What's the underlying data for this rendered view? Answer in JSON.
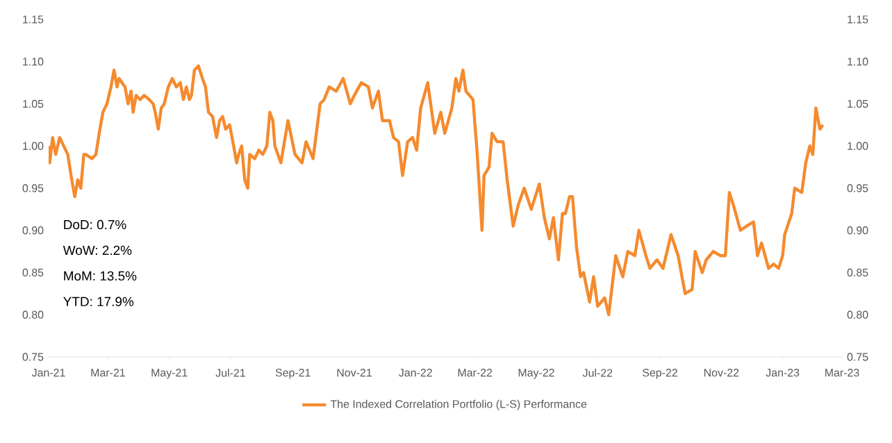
{
  "chart_data": {
    "type": "line",
    "x": [
      "2021-01-01",
      "2021-01-02",
      "2021-01-05",
      "2021-01-08",
      "2021-01-12",
      "2021-01-16",
      "2021-01-20",
      "2021-01-24",
      "2021-01-27",
      "2021-01-30",
      "2021-02-02",
      "2021-02-05",
      "2021-02-07",
      "2021-02-13",
      "2021-02-17",
      "2021-02-21",
      "2021-02-24",
      "2021-02-28",
      "2021-03-04",
      "2021-03-07",
      "2021-03-10",
      "2021-03-12",
      "2021-03-15",
      "2021-03-18",
      "2021-03-21",
      "2021-03-24",
      "2021-03-26",
      "2021-03-29",
      "2021-04-02",
      "2021-04-06",
      "2021-04-11",
      "2021-04-15",
      "2021-04-17",
      "2021-04-20",
      "2021-04-23",
      "2021-04-26",
      "2021-04-30",
      "2021-05-04",
      "2021-05-08",
      "2021-05-12",
      "2021-05-15",
      "2021-05-18",
      "2021-05-21",
      "2021-05-23",
      "2021-05-26",
      "2021-05-30",
      "2021-06-03",
      "2021-06-06",
      "2021-06-09",
      "2021-06-13",
      "2021-06-17",
      "2021-06-20",
      "2021-06-23",
      "2021-06-26",
      "2021-06-30",
      "2021-07-04",
      "2021-07-07",
      "2021-07-09",
      "2021-07-12",
      "2021-07-15",
      "2021-07-18",
      "2021-07-20",
      "2021-07-25",
      "2021-07-29",
      "2021-08-02",
      "2021-08-06",
      "2021-08-09",
      "2021-08-12",
      "2021-08-14",
      "2021-08-20",
      "2021-08-27",
      "2021-09-03",
      "2021-09-10",
      "2021-09-14",
      "2021-09-21",
      "2021-09-28",
      "2021-10-02",
      "2021-10-07",
      "2021-10-14",
      "2021-10-21",
      "2021-10-28",
      "2021-11-01",
      "2021-11-08",
      "2021-11-15",
      "2021-11-19",
      "2021-11-25",
      "2021-11-29",
      "2021-12-06",
      "2021-12-10",
      "2021-12-15",
      "2021-12-19",
      "2021-12-24",
      "2021-12-29",
      "2022-01-02",
      "2022-01-06",
      "2022-01-13",
      "2022-01-20",
      "2022-01-26",
      "2022-01-30",
      "2022-02-06",
      "2022-02-10",
      "2022-02-13",
      "2022-02-17",
      "2022-02-20",
      "2022-02-27",
      "2022-03-03",
      "2022-03-08",
      "2022-03-10",
      "2022-03-15",
      "2022-03-18",
      "2022-03-23",
      "2022-03-29",
      "2022-04-02",
      "2022-04-08",
      "2022-04-13",
      "2022-04-19",
      "2022-04-26",
      "2022-04-30",
      "2022-05-04",
      "2022-05-09",
      "2022-05-14",
      "2022-05-18",
      "2022-05-23",
      "2022-05-27",
      "2022-05-30",
      "2022-06-03",
      "2022-06-06",
      "2022-06-10",
      "2022-06-14",
      "2022-06-17",
      "2022-06-23",
      "2022-06-27",
      "2022-07-01",
      "2022-07-08",
      "2022-07-12",
      "2022-07-19",
      "2022-07-26",
      "2022-07-31",
      "2022-08-07",
      "2022-08-11",
      "2022-08-18",
      "2022-08-22",
      "2022-08-29",
      "2022-09-04",
      "2022-09-12",
      "2022-09-19",
      "2022-09-26",
      "2022-10-03",
      "2022-10-06",
      "2022-10-13",
      "2022-10-17",
      "2022-10-24",
      "2022-10-31",
      "2022-11-05",
      "2022-11-09",
      "2022-11-13",
      "2022-11-20",
      "2022-11-26",
      "2022-12-03",
      "2022-12-07",
      "2022-12-11",
      "2022-12-18",
      "2022-12-23",
      "2022-12-28",
      "2023-01-01",
      "2023-01-03",
      "2023-01-10",
      "2023-01-13",
      "2023-01-20",
      "2023-01-24",
      "2023-01-28",
      "2023-01-31",
      "2023-02-03",
      "2023-02-07",
      "2023-02-10"
    ],
    "series": [
      {
        "name": "The Indexed Correlation Portfolio (L-S) Performance",
        "color": "#f58a2e",
        "values": [
          1.0,
          0.98,
          1.01,
          0.99,
          1.01,
          1.0,
          0.99,
          0.96,
          0.94,
          0.96,
          0.95,
          0.99,
          0.99,
          0.985,
          0.99,
          1.02,
          1.04,
          1.05,
          1.07,
          1.09,
          1.07,
          1.08,
          1.075,
          1.07,
          1.05,
          1.065,
          1.04,
          1.06,
          1.055,
          1.06,
          1.055,
          1.05,
          1.04,
          1.02,
          1.045,
          1.05,
          1.07,
          1.08,
          1.07,
          1.075,
          1.055,
          1.07,
          1.055,
          1.06,
          1.09,
          1.095,
          1.08,
          1.07,
          1.04,
          1.035,
          1.01,
          1.03,
          1.035,
          1.02,
          1.025,
          1.0,
          0.98,
          0.99,
          1.0,
          0.96,
          0.95,
          0.99,
          0.985,
          0.995,
          0.99,
          1.0,
          1.04,
          1.03,
          1.0,
          0.98,
          1.03,
          0.99,
          0.98,
          1.005,
          0.985,
          1.05,
          1.055,
          1.07,
          1.065,
          1.08,
          1.05,
          1.06,
          1.075,
          1.07,
          1.045,
          1.065,
          1.03,
          1.03,
          1.01,
          1.005,
          0.965,
          1.005,
          1.01,
          0.995,
          1.045,
          1.075,
          1.015,
          1.04,
          1.015,
          1.045,
          1.08,
          1.065,
          1.09,
          1.065,
          1.055,
          0.995,
          0.9,
          0.965,
          0.975,
          1.015,
          1.005,
          1.005,
          0.96,
          0.905,
          0.93,
          0.95,
          0.925,
          0.94,
          0.955,
          0.915,
          0.89,
          0.915,
          0.865,
          0.92,
          0.92,
          0.94,
          0.94,
          0.88,
          0.845,
          0.85,
          0.815,
          0.845,
          0.81,
          0.82,
          0.8,
          0.87,
          0.845,
          0.875,
          0.87,
          0.9,
          0.87,
          0.855,
          0.865,
          0.855,
          0.895,
          0.87,
          0.825,
          0.83,
          0.875,
          0.85,
          0.865,
          0.875,
          0.87,
          0.87,
          0.945,
          0.93,
          0.9,
          0.905,
          0.91,
          0.87,
          0.885,
          0.855,
          0.86,
          0.855,
          0.87,
          0.895,
          0.92,
          0.95,
          0.945,
          0.98,
          1.0,
          0.99,
          1.045,
          1.02,
          1.025
        ]
      }
    ],
    "xlim": [
      "2021-01-01",
      "2023-03-01"
    ],
    "xticks": [
      {
        "value": "2021-01-01",
        "label": "Jan-21"
      },
      {
        "value": "2021-03-01",
        "label": "Mar-21"
      },
      {
        "value": "2021-05-01",
        "label": "May-21"
      },
      {
        "value": "2021-07-01",
        "label": "Jul-21"
      },
      {
        "value": "2021-09-01",
        "label": "Sep-21"
      },
      {
        "value": "2021-11-01",
        "label": "Nov-21"
      },
      {
        "value": "2022-01-01",
        "label": "Jan-22"
      },
      {
        "value": "2022-03-01",
        "label": "Mar-22"
      },
      {
        "value": "2022-05-01",
        "label": "May-22"
      },
      {
        "value": "2022-07-01",
        "label": "Jul-22"
      },
      {
        "value": "2022-09-01",
        "label": "Sep-22"
      },
      {
        "value": "2022-11-01",
        "label": "Nov-22"
      },
      {
        "value": "2023-01-01",
        "label": "Jan-23"
      },
      {
        "value": "2023-03-01",
        "label": "Mar-23"
      }
    ],
    "ylim": [
      0.75,
      1.15
    ],
    "yticks": [
      {
        "value": 0.75,
        "label": "0.75"
      },
      {
        "value": 0.8,
        "label": "0.80"
      },
      {
        "value": 0.85,
        "label": "0.85"
      },
      {
        "value": 0.9,
        "label": "0.90"
      },
      {
        "value": 0.95,
        "label": "0.95"
      },
      {
        "value": 1.0,
        "label": "1.00"
      },
      {
        "value": 1.05,
        "label": "1.05"
      },
      {
        "value": 1.1,
        "label": "1.10"
      },
      {
        "value": 1.15,
        "label": "1.15"
      }
    ],
    "y2lim": [
      0.75,
      1.15
    ],
    "y2ticks": [
      {
        "value": 0.75,
        "label": "0.75"
      },
      {
        "value": 0.8,
        "label": "0.80"
      },
      {
        "value": 0.85,
        "label": "0.85"
      },
      {
        "value": 0.9,
        "label": "0.90"
      },
      {
        "value": 0.95,
        "label": "0.95"
      },
      {
        "value": 1.0,
        "label": "1.00"
      },
      {
        "value": 1.05,
        "label": "1.05"
      },
      {
        "value": 1.1,
        "label": "1.10"
      },
      {
        "value": 1.15,
        "label": "1.15"
      }
    ],
    "annotations": [
      "DoD:  0.7%",
      "WoW: 2.2%",
      "MoM:  13.5%",
      "YTD:  17.9%"
    ],
    "legend": "bottom",
    "grid": false,
    "marker": "none",
    "line_style": "solid"
  }
}
